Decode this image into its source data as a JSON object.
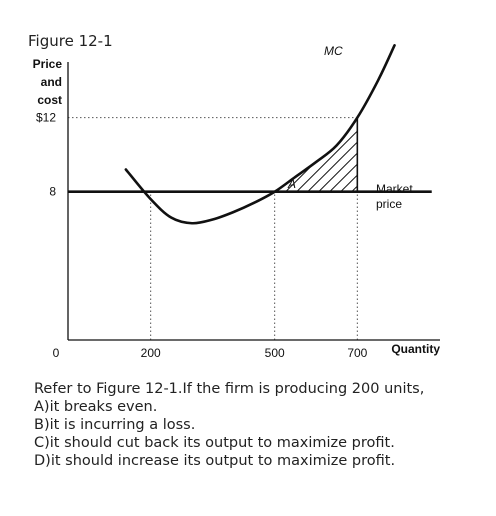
{
  "figure_title": "Figure 12-1",
  "chart_data": {
    "type": "line",
    "y_label_lines": [
      "Price",
      "and",
      "cost"
    ],
    "x_label": "Quantity",
    "x_ticks": [
      {
        "value": 0,
        "label": "0"
      },
      {
        "value": 200,
        "label": "200"
      },
      {
        "value": 500,
        "label": "500"
      },
      {
        "value": 700,
        "label": "700"
      }
    ],
    "y_ticks": [
      {
        "value": 8,
        "label": "8"
      },
      {
        "value": 12,
        "label": "$12"
      }
    ],
    "xlim": [
      0,
      900
    ],
    "ylim": [
      0,
      15
    ],
    "series": [
      {
        "name": "MC",
        "points": [
          [
            140,
            9.2
          ],
          [
            200,
            7.6
          ],
          [
            250,
            6.6
          ],
          [
            300,
            6.3
          ],
          [
            350,
            6.5
          ],
          [
            400,
            6.9
          ],
          [
            450,
            7.4
          ],
          [
            500,
            8.0
          ],
          [
            550,
            8.8
          ],
          [
            600,
            9.6
          ],
          [
            650,
            10.5
          ],
          [
            700,
            12.0
          ],
          [
            750,
            14.0
          ],
          [
            790,
            15.9
          ]
        ]
      }
    ],
    "lines": [
      {
        "name": "Market price",
        "label_lines": [
          "Market",
          "price"
        ],
        "y": 8,
        "x": [
          0,
          880
        ]
      }
    ],
    "reference_lines": [
      {
        "x": 200,
        "style": "dotted",
        "to_y": 8
      },
      {
        "x": 500,
        "style": "dotted",
        "to_y": 8
      },
      {
        "x": 700,
        "style": "dotted",
        "to_y": 12
      },
      {
        "y": 12,
        "style": "dotted",
        "to_x": 700
      }
    ],
    "shaded_region": {
      "label": "A",
      "between": "MC and Market price",
      "x_range": [
        500,
        700
      ],
      "pattern": "hatched"
    }
  },
  "question": {
    "stem": "Refer to Figure 12-1.If the firm is producing 200 units,",
    "options": [
      "A)it breaks even.",
      "B)it is incurring a loss.",
      "C)it should cut back its output to maximize profit.",
      "D)it should increase its output to maximize profit."
    ]
  }
}
